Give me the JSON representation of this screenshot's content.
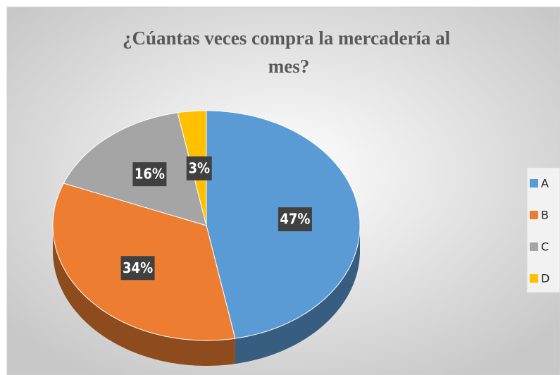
{
  "chart_data": {
    "type": "pie",
    "title": "¿Cúantas veces compra la mercadería al mes?",
    "categories": [
      "A",
      "B",
      "C",
      "D"
    ],
    "values": [
      47,
      34,
      16,
      3
    ],
    "value_labels": [
      "47%",
      "34%",
      "16%",
      "3%"
    ],
    "colors": [
      "#5b9bd5",
      "#ed7d31",
      "#a5a5a5",
      "#ffc000"
    ],
    "legend": "right"
  }
}
